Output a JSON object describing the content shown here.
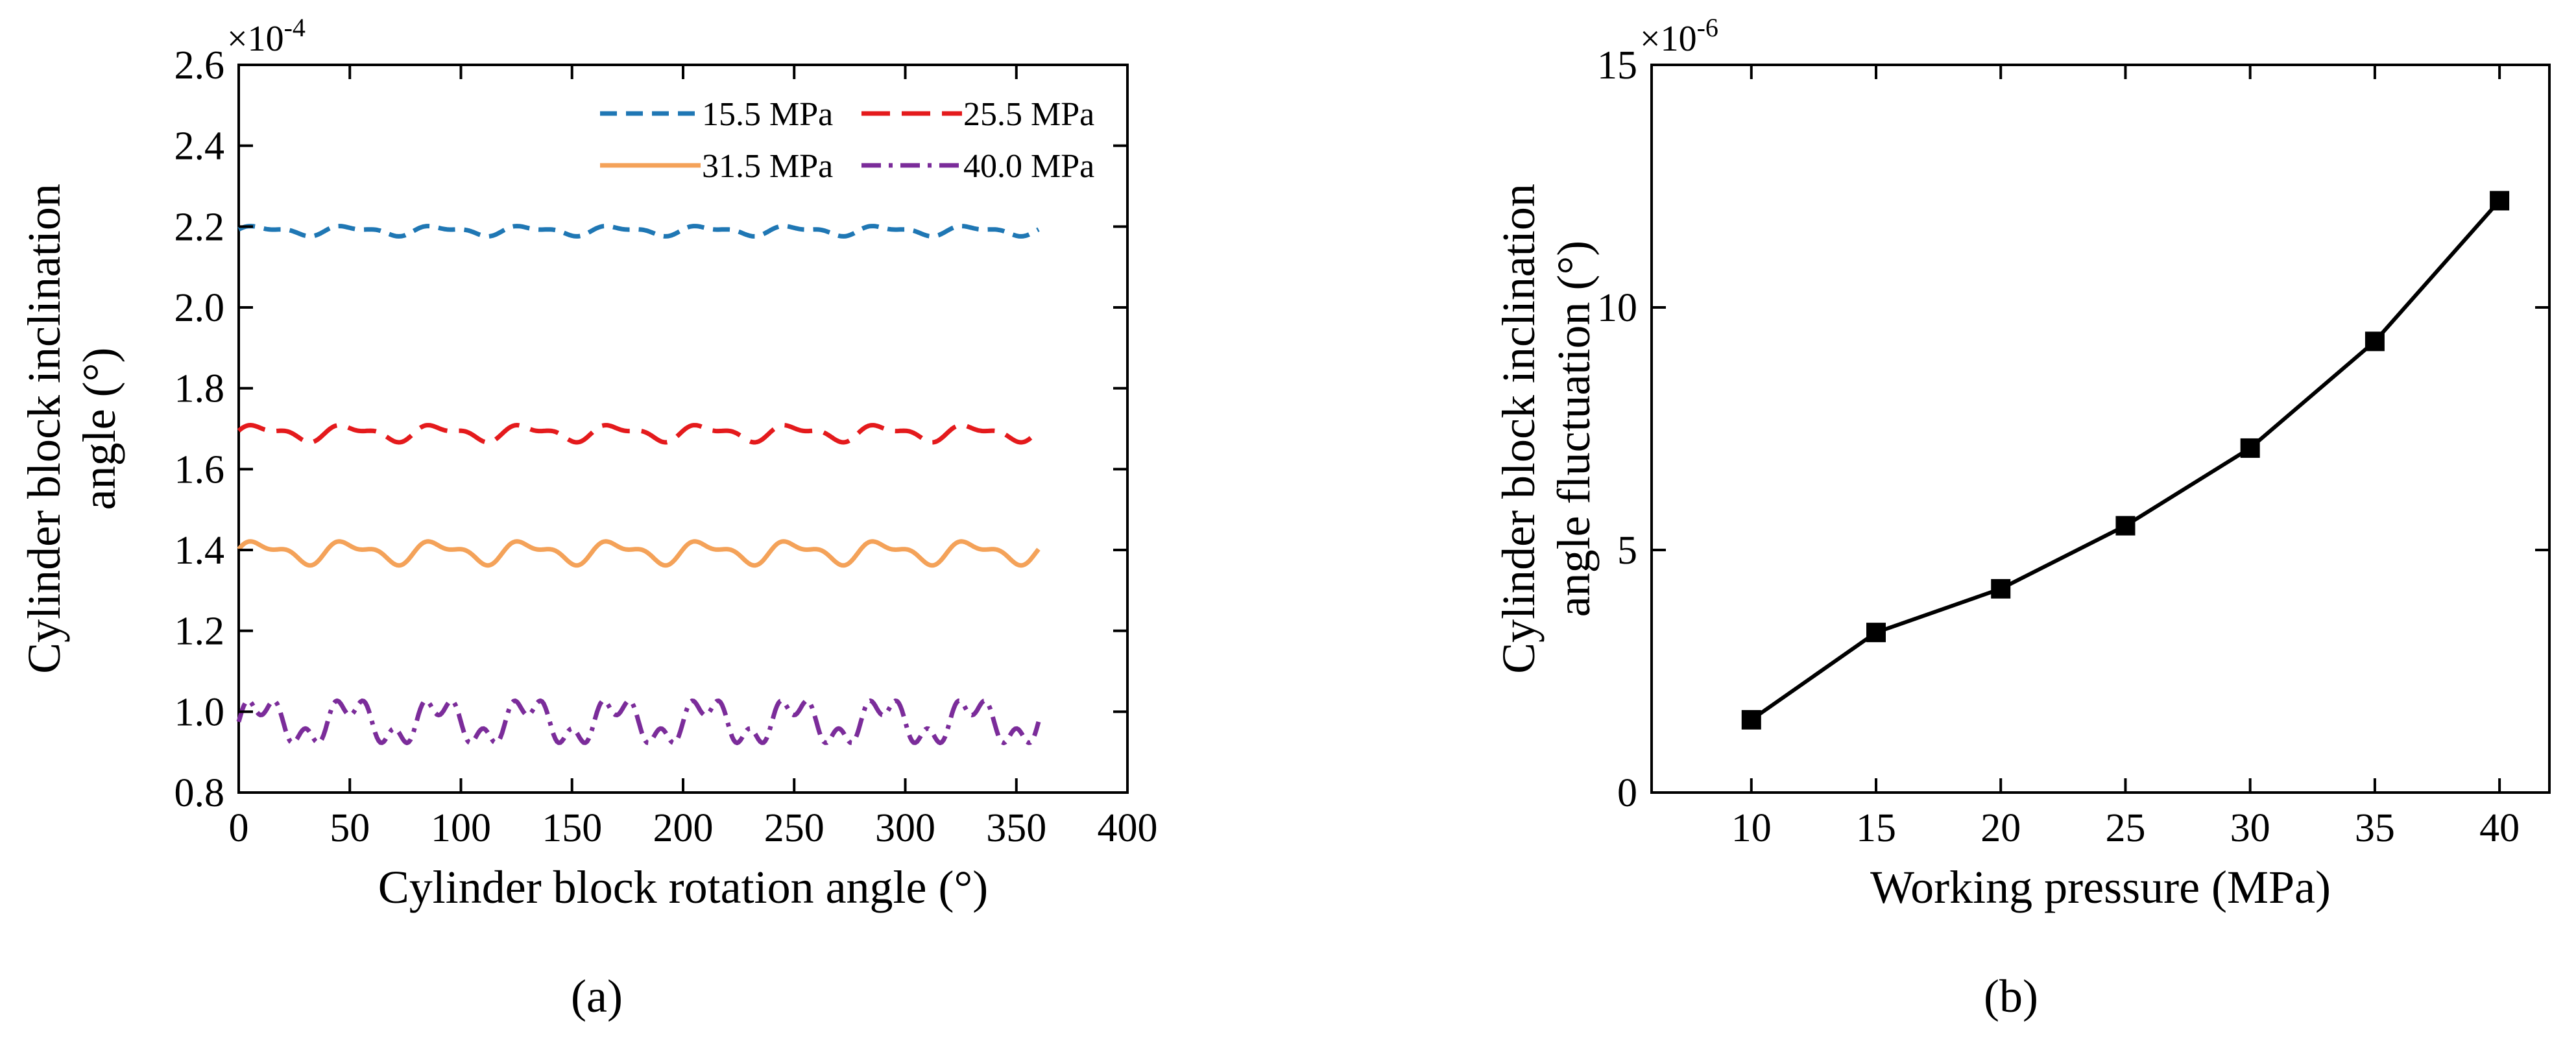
{
  "colors": {
    "series_15_5": "#1f77b4",
    "series_25_5": "#e41a1c",
    "series_31_5": "#f4a259",
    "series_40_0": "#7b2c9a",
    "axis": "#000000"
  },
  "chart_data": [
    {
      "type": "line",
      "panel_label": "(a)",
      "xlabel": "Cylinder block rotation angle (°)",
      "ylabel_line1": "Cylinder block inclination",
      "ylabel_line2": "angle (°)",
      "y_multiplier": "×10",
      "y_multiplier_exp": "-4",
      "xlim": [
        0,
        400
      ],
      "ylim": [
        0.8,
        2.6
      ],
      "x_ticks": [
        "0",
        "50",
        "100",
        "150",
        "200",
        "250",
        "300",
        "350",
        "400"
      ],
      "y_ticks": [
        "0.8",
        "1.0",
        "1.2",
        "1.4",
        "1.6",
        "1.8",
        "2.0",
        "2.2",
        "2.4",
        "2.6"
      ],
      "legend_position": "top-right",
      "grid": false,
      "series": [
        {
          "name": "15.5 MPa",
          "style": "dashed",
          "mean": 2.19,
          "amplitude": 0.015,
          "x_range": [
            0,
            360
          ]
        },
        {
          "name": "25.5 MPa",
          "style": "longdash",
          "mean": 1.69,
          "amplitude": 0.025,
          "x_range": [
            0,
            360
          ]
        },
        {
          "name": "31.5 MPa",
          "style": "solid",
          "mean": 1.395,
          "amplitude": 0.035,
          "x_range": [
            0,
            360
          ]
        },
        {
          "name": "40.0 MPa",
          "style": "dashdot",
          "mean": 0.975,
          "amplitude": 0.055,
          "x_range": [
            0,
            360
          ]
        }
      ]
    },
    {
      "type": "line",
      "panel_label": "(b)",
      "xlabel": "Working pressure (MPa)",
      "ylabel_line1": "Cylinder block inclination",
      "ylabel_line2": "angle fluctuation (°)",
      "y_multiplier": "×10",
      "y_multiplier_exp": "-6",
      "xlim": [
        6,
        42
      ],
      "ylim": [
        0,
        15
      ],
      "x_ticks": [
        "10",
        "15",
        "20",
        "25",
        "30",
        "35",
        "40"
      ],
      "y_ticks": [
        "0",
        "5",
        "10",
        "15"
      ],
      "grid": false,
      "marker": "square",
      "x": [
        10,
        15,
        20,
        25,
        30,
        35,
        40
      ],
      "y": [
        1.5,
        3.3,
        4.2,
        5.5,
        7.1,
        9.3,
        12.2
      ]
    }
  ]
}
